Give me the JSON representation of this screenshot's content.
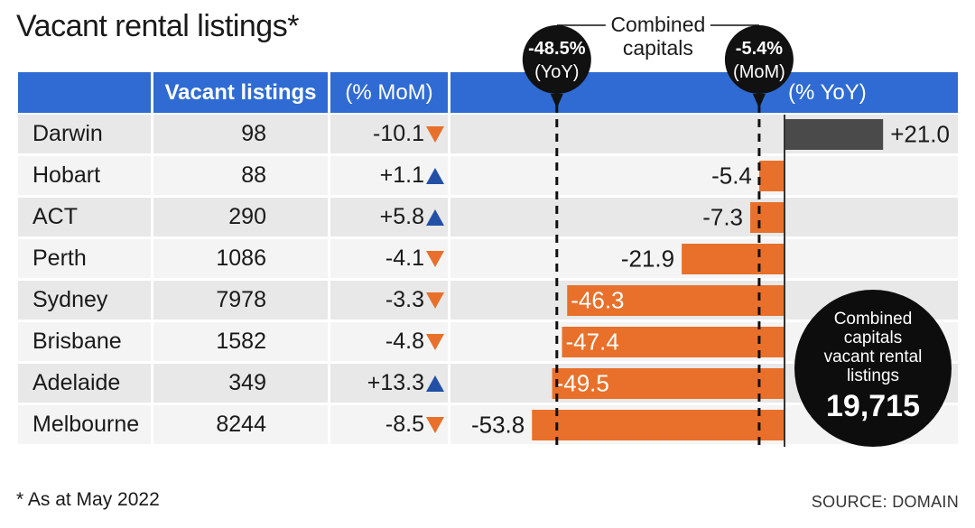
{
  "title": "Vacant rental listings*",
  "headers": {
    "listings": "Vacant listings",
    "mom": "(% MoM)",
    "yoy": "(% YoY)"
  },
  "chart_data": {
    "type": "bar",
    "title": "Vacant rental listings*",
    "categories": [
      "Darwin",
      "Hobart",
      "ACT",
      "Perth",
      "Sydney",
      "Brisbane",
      "Adelaide",
      "Melbourne"
    ],
    "vacant_listings": [
      98,
      88,
      290,
      1086,
      7978,
      1582,
      349,
      8244
    ],
    "mom_pct": [
      "-10.1",
      "+1.1",
      "+5.8",
      "-4.1",
      "-3.3",
      "-4.8",
      "+13.3",
      "-8.5"
    ],
    "mom_direction": [
      "down",
      "up",
      "up",
      "down",
      "down",
      "down",
      "up",
      "down"
    ],
    "series": [
      {
        "name": "(% YoY)",
        "values": [
          21.0,
          -5.4,
          -7.3,
          -21.9,
          -46.3,
          -47.4,
          -49.5,
          -53.8
        ]
      }
    ],
    "value_labels": [
      "+21.0",
      "-5.4",
      "-7.3",
      "-21.9",
      "-46.3",
      "-47.4",
      "-49.5",
      "-53.8"
    ],
    "xlim": [
      -60,
      21
    ],
    "reference_lines": [
      {
        "label_value": "-48.5%",
        "label_period": "(YoY)",
        "value": -48.5
      },
      {
        "label_value": "-5.4%",
        "label_period": "(MoM)",
        "value": -5.4
      }
    ],
    "reference_title_line1": "Combined",
    "reference_title_line2": "capitals",
    "combined_lines": [
      "Combined",
      "capitals",
      "vacant rental",
      "listings"
    ],
    "combined_total": "19,715"
  },
  "footnote": "* As at May 2022",
  "source": "SOURCE: DOMAIN",
  "colors": {
    "header": "#2f6bd2",
    "negative_bar": "#e8702a",
    "positive_bar": "#4a4a4a",
    "up_arrow": "#2350a6",
    "down_arrow": "#e8702a"
  }
}
